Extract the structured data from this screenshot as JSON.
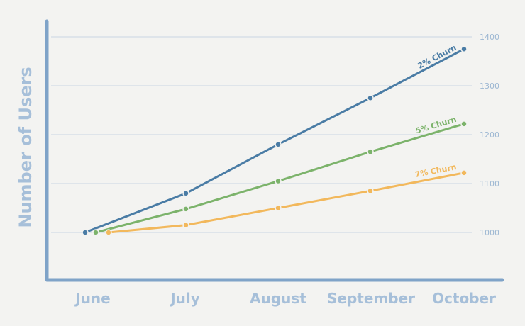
{
  "chart_data": {
    "type": "line",
    "title": "",
    "xlabel": "",
    "ylabel": "Number of Users",
    "categories": [
      "June",
      "July",
      "August",
      "September",
      "October"
    ],
    "ylim": [
      950,
      1450
    ],
    "yticks": [
      1000,
      1100,
      1200,
      1300,
      1400
    ],
    "grid": true,
    "series": [
      {
        "name": "2% Churn",
        "color": "#4a7ca5",
        "values": [
          1000,
          1080,
          1180,
          1275,
          1375
        ]
      },
      {
        "name": "5% Churn",
        "color": "#7cb36b",
        "values": [
          1000,
          1048,
          1105,
          1165,
          1222
        ]
      },
      {
        "name": "7% Churn",
        "color": "#f2b85c",
        "values": [
          1000,
          1015,
          1050,
          1085,
          1122
        ]
      }
    ]
  }
}
